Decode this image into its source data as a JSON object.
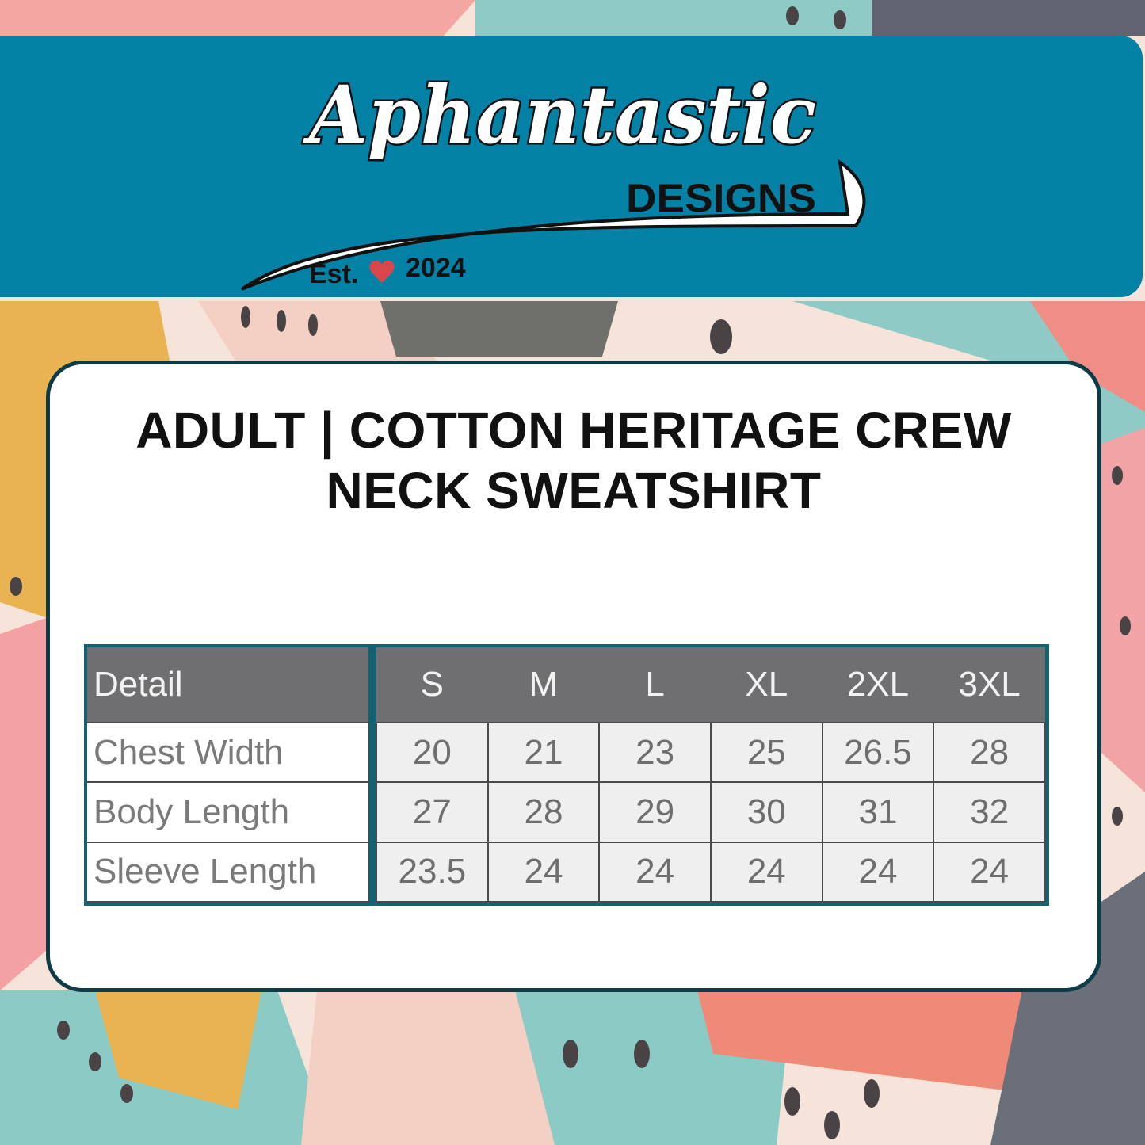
{
  "brand": {
    "name": "Aphantastic",
    "sub": "DESIGNS",
    "est": "Est.",
    "year": "2024"
  },
  "title": {
    "line1": "ADULT | COTTON HERITAGE CREW",
    "line2": "NECK SWEATSHIRT"
  },
  "size_table": {
    "headers": [
      "Detail",
      "S",
      "M",
      "L",
      "XL",
      "2XL",
      "3XL"
    ],
    "rows": [
      {
        "label": "Chest Width",
        "values": [
          "20",
          "21",
          "23",
          "25",
          "26.5",
          "28"
        ]
      },
      {
        "label": "Body Length",
        "values": [
          "27",
          "28",
          "29",
          "30",
          "31",
          "32"
        ]
      },
      {
        "label": "Sleeve Length",
        "values": [
          "23.5",
          "24",
          "24",
          "24",
          "24",
          "24"
        ]
      }
    ]
  },
  "colors": {
    "banner": "#0482a6",
    "table_border": "#136172",
    "header_bg": "#6f6f71",
    "card_border": "#0e3c46"
  }
}
